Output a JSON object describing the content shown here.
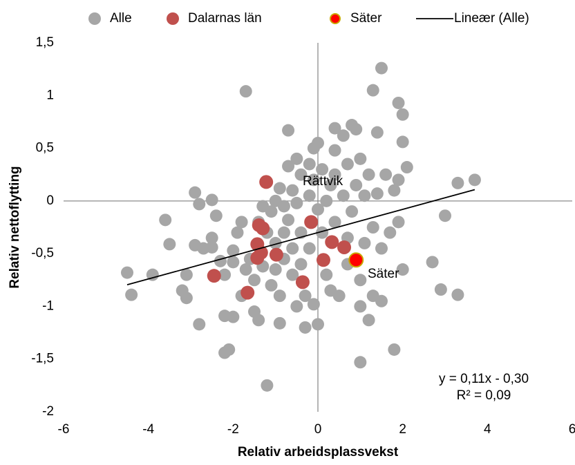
{
  "chart_data": {
    "type": "scatter",
    "xlabel": "Relativ arbeidsplassvekst",
    "ylabel": "Relativ nettoflytting",
    "xlim": [
      -6,
      6
    ],
    "ylim": [
      -2,
      1.5
    ],
    "xticks": [
      -6,
      -4,
      -2,
      0,
      2,
      4,
      6
    ],
    "yticks": [
      {
        "value": -2,
        "label": "-2"
      },
      {
        "value": -1.5,
        "label": "-1,5"
      },
      {
        "value": -1,
        "label": "-1"
      },
      {
        "value": -0.5,
        "label": "-0,5"
      },
      {
        "value": 0,
        "label": "0"
      },
      {
        "value": 0.5,
        "label": "0,5"
      },
      {
        "value": 1,
        "label": "1"
      },
      {
        "value": 1.5,
        "label": "1,5"
      }
    ],
    "legend": "top",
    "series": [
      {
        "name": "Alle",
        "color": "#a6a6a6",
        "x": [
          -4.5,
          -4.4,
          -3.9,
          -3.6,
          -3.5,
          -3.2,
          -3.1,
          -3.1,
          -2.9,
          -2.9,
          -2.8,
          -2.8,
          -2.7,
          -2.5,
          -2.5,
          -2.5,
          -2.4,
          -2.3,
          -2.2,
          -2.2,
          -2.2,
          -2.1,
          -2.0,
          -2.0,
          -2.0,
          -1.9,
          -1.8,
          -1.8,
          -1.7,
          -1.7,
          -1.6,
          -1.5,
          -1.5,
          -1.4,
          -1.4,
          -1.3,
          -1.3,
          -1.2,
          -1.2,
          -1.1,
          -1.1,
          -1.0,
          -1.0,
          -1.0,
          -0.9,
          -0.9,
          -0.9,
          -0.8,
          -0.8,
          -0.8,
          -0.7,
          -0.7,
          -0.7,
          -0.6,
          -0.6,
          -0.6,
          -0.5,
          -0.5,
          -0.5,
          -0.4,
          -0.4,
          -0.4,
          -0.3,
          -0.3,
          -0.2,
          -0.2,
          -0.2,
          -0.1,
          -0.1,
          -0.1,
          0.0,
          0.0,
          0.0,
          0.1,
          0.1,
          0.2,
          0.2,
          0.3,
          0.3,
          0.4,
          0.4,
          0.4,
          0.4,
          0.5,
          0.6,
          0.6,
          0.7,
          0.7,
          0.7,
          0.8,
          0.8,
          0.9,
          0.9,
          1.0,
          1.0,
          1.0,
          1.0,
          1.1,
          1.1,
          1.2,
          1.2,
          1.3,
          1.3,
          1.3,
          1.4,
          1.4,
          1.5,
          1.5,
          1.5,
          1.6,
          1.7,
          1.8,
          1.8,
          1.9,
          1.9,
          1.9,
          2.0,
          2.0,
          2.0,
          2.1,
          2.7,
          2.9,
          3.0,
          3.3,
          3.3,
          3.7
        ],
        "values": [
          -0.68,
          -0.89,
          -0.7,
          -0.18,
          -0.41,
          -0.85,
          -0.92,
          -0.7,
          -0.42,
          0.08,
          -0.03,
          -1.17,
          -0.45,
          0.01,
          -0.35,
          -0.44,
          -0.14,
          -0.57,
          -0.7,
          -1.09,
          -1.44,
          -1.41,
          -1.1,
          -0.47,
          -0.58,
          -0.3,
          -0.2,
          -0.9,
          1.04,
          -0.65,
          -0.55,
          -0.75,
          -1.05,
          -0.2,
          -1.13,
          -0.05,
          -0.62,
          -0.3,
          -1.75,
          -0.1,
          -0.8,
          0.0,
          -0.4,
          -0.65,
          0.12,
          -0.9,
          -1.16,
          -0.05,
          -0.3,
          -0.55,
          0.33,
          0.67,
          -0.18,
          0.1,
          -0.45,
          -0.7,
          0.4,
          -0.02,
          -1.0,
          0.25,
          -0.3,
          -0.6,
          -1.2,
          -0.9,
          0.35,
          0.05,
          -0.45,
          0.5,
          0.2,
          -0.98,
          0.55,
          -0.08,
          -1.17,
          0.3,
          -0.3,
          0.0,
          -0.7,
          0.15,
          -0.85,
          0.69,
          0.48,
          0.25,
          -0.2,
          -0.9,
          0.05,
          0.62,
          0.35,
          -0.35,
          -0.6,
          0.72,
          -0.1,
          0.68,
          0.15,
          0.4,
          -0.75,
          -1.0,
          -1.53,
          0.05,
          -0.4,
          0.25,
          -1.13,
          1.05,
          -0.25,
          -0.9,
          0.65,
          0.07,
          1.26,
          -0.45,
          -0.95,
          0.25,
          -0.3,
          0.1,
          -1.41,
          0.93,
          0.2,
          -0.2,
          0.82,
          -0.65,
          0.56,
          0.32,
          -0.58,
          -0.84,
          -0.14,
          0.17,
          -0.89,
          0.2
        ]
      },
      {
        "name": "Dalarnas län",
        "color": "#c0504d",
        "x": [
          -1.22,
          -2.45,
          -1.66,
          -1.39,
          -1.3,
          -0.16,
          -1.43,
          -1.34,
          -1.43,
          -0.98,
          0.33,
          0.62,
          0.13,
          -0.36
        ],
        "values": [
          0.18,
          -0.71,
          -0.87,
          -0.23,
          -0.26,
          -0.2,
          -0.41,
          -0.49,
          -0.54,
          -0.51,
          -0.39,
          -0.44,
          -0.56,
          -0.77
        ]
      },
      {
        "name": "Säter",
        "color": "#ff0000",
        "edge_color": "#c9a800",
        "x": [
          0.9
        ],
        "values": [
          -0.56
        ]
      },
      {
        "name": "Lineær (Alle)",
        "type": "line",
        "color": "#000000",
        "x": [
          -4.5,
          3.7
        ],
        "values": [
          -0.795,
          0.107
        ]
      }
    ],
    "annotations": [
      "Rättvik",
      "Säter",
      "y = 0,11x - 0,30",
      "R² = 0,09"
    ]
  }
}
